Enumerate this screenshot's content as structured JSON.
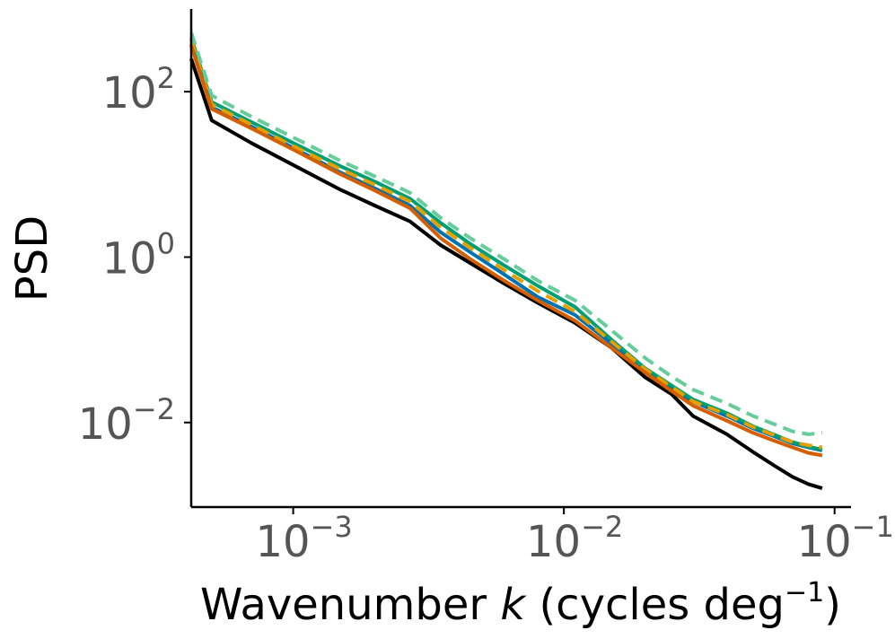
{
  "chart_data": {
    "type": "line",
    "title": "",
    "xlabel": {
      "prefix": "Wavenumber ",
      "var": "k",
      "middle": " (cycles deg",
      "sup": "−1",
      "suffix": ")"
    },
    "ylabel": "PSD",
    "xscale": "log",
    "yscale": "log",
    "xlim": [
      0.00042,
      0.115
    ],
    "ylim": [
      0.00095,
      1000
    ],
    "xticks": [
      {
        "value": 0.001,
        "base": "10",
        "exp": "−3"
      },
      {
        "value": 0.01,
        "base": "10",
        "exp": "−2"
      },
      {
        "value": 0.1,
        "base": "10",
        "exp": "−1"
      }
    ],
    "yticks": [
      {
        "value": 0.01,
        "base": "10",
        "exp": "−2"
      },
      {
        "value": 1,
        "base": "10",
        "exp": "0"
      },
      {
        "value": 100,
        "base": "10",
        "exp": "2"
      }
    ],
    "grid": false,
    "legend": false,
    "series": [
      {
        "name": "black",
        "color": "#000000",
        "dash": "solid",
        "x": [
          0.00042,
          0.0005,
          0.0007,
          0.001,
          0.0015,
          0.002,
          0.0027,
          0.0035,
          0.0045,
          0.006,
          0.008,
          0.011,
          0.015,
          0.02,
          0.025,
          0.03,
          0.04,
          0.05,
          0.06,
          0.07,
          0.08,
          0.09
        ],
        "y": [
          250,
          45,
          24,
          13,
          6.5,
          4.2,
          2.7,
          1.4,
          0.85,
          0.48,
          0.28,
          0.16,
          0.08,
          0.035,
          0.022,
          0.012,
          0.0072,
          0.0044,
          0.003,
          0.0022,
          0.0018,
          0.0016
        ]
      },
      {
        "name": "blue",
        "color": "#0072B2",
        "dash": "solid",
        "x": [
          0.00042,
          0.0005,
          0.0007,
          0.001,
          0.0015,
          0.002,
          0.0027,
          0.0035,
          0.0045,
          0.006,
          0.008,
          0.011,
          0.015,
          0.02,
          0.025,
          0.03,
          0.04,
          0.05,
          0.06,
          0.07,
          0.08,
          0.09
        ],
        "y": [
          380,
          65,
          38,
          21,
          10.5,
          6.8,
          4.2,
          2.0,
          1.15,
          0.62,
          0.33,
          0.2,
          0.09,
          0.042,
          0.026,
          0.018,
          0.012,
          0.0085,
          0.0068,
          0.0056,
          0.005,
          0.0046
        ]
      },
      {
        "name": "green",
        "color": "#009E73",
        "dash": "solid",
        "x": [
          0.00042,
          0.0005,
          0.0007,
          0.001,
          0.0015,
          0.002,
          0.0027,
          0.0035,
          0.0045,
          0.006,
          0.008,
          0.011,
          0.015,
          0.02,
          0.025,
          0.03,
          0.04,
          0.05,
          0.06,
          0.07,
          0.08,
          0.09
        ],
        "y": [
          450,
          75,
          43,
          24,
          12.5,
          8.2,
          5.1,
          2.6,
          1.45,
          0.8,
          0.45,
          0.25,
          0.1,
          0.045,
          0.028,
          0.019,
          0.013,
          0.009,
          0.0071,
          0.0058,
          0.0051,
          0.0047
        ]
      },
      {
        "name": "yellow-dashed",
        "color": "#E69F00",
        "dash": "14,8",
        "x": [
          0.00042,
          0.0005,
          0.0007,
          0.001,
          0.0015,
          0.002,
          0.0027,
          0.0035,
          0.0045,
          0.006,
          0.008,
          0.011,
          0.015,
          0.02,
          0.025,
          0.03,
          0.04,
          0.05,
          0.06,
          0.07,
          0.08,
          0.09
        ],
        "y": [
          420,
          70,
          40,
          22,
          11.5,
          7.5,
          4.7,
          2.3,
          1.3,
          0.7,
          0.39,
          0.22,
          0.095,
          0.044,
          0.027,
          0.018,
          0.0125,
          0.0088,
          0.007,
          0.0058,
          0.0053,
          0.005
        ]
      },
      {
        "name": "light-green-dashed",
        "color": "#66CC99",
        "dash": "14,8",
        "x": [
          0.00042,
          0.0005,
          0.0007,
          0.001,
          0.0015,
          0.002,
          0.0027,
          0.0035,
          0.0045,
          0.006,
          0.008,
          0.011,
          0.015,
          0.02,
          0.025,
          0.03,
          0.04,
          0.05,
          0.06,
          0.07,
          0.08,
          0.09
        ],
        "y": [
          520,
          90,
          50,
          28,
          14.5,
          9.5,
          6.0,
          3.0,
          1.7,
          0.95,
          0.52,
          0.3,
          0.13,
          0.06,
          0.036,
          0.025,
          0.017,
          0.012,
          0.0095,
          0.0078,
          0.0072,
          0.0075
        ]
      },
      {
        "name": "orange",
        "color": "#D55E00",
        "dash": "solid",
        "x": [
          0.00042,
          0.0005,
          0.0007,
          0.001,
          0.0015,
          0.002,
          0.0027,
          0.0035,
          0.0045,
          0.006,
          0.008,
          0.011,
          0.015,
          0.02,
          0.025,
          0.03,
          0.04,
          0.05,
          0.06,
          0.07,
          0.08,
          0.09
        ],
        "y": [
          360,
          62,
          36,
          20,
          10,
          6.4,
          3.9,
          1.7,
          0.95,
          0.52,
          0.3,
          0.17,
          0.08,
          0.04,
          0.024,
          0.016,
          0.0105,
          0.0075,
          0.006,
          0.005,
          0.0043,
          0.004
        ]
      }
    ]
  }
}
